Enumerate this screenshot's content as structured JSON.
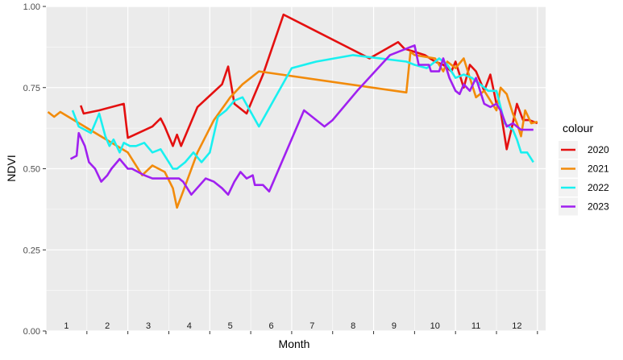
{
  "chart_data": {
    "type": "line",
    "title": "",
    "xlabel": "Month",
    "ylabel": "NDVI",
    "ylim": [
      0,
      1
    ],
    "xlim": [
      0,
      12.2
    ],
    "y_ticks": [
      "0.00",
      "0.25",
      "0.50",
      "0.75",
      "1.00"
    ],
    "y_tick_values": [
      0,
      0.25,
      0.5,
      0.75,
      1.0
    ],
    "x_ticks": [
      "1",
      "2",
      "3",
      "4",
      "5",
      "6",
      "7",
      "8",
      "9",
      "10",
      "11",
      "12"
    ],
    "x_tick_values": [
      0.5,
      1.5,
      2.5,
      3.5,
      4.5,
      5.5,
      6.5,
      7.5,
      8.5,
      9.5,
      10.5,
      11.5
    ],
    "grid": true,
    "legend_title": "colour",
    "legend_position": "right",
    "series": [
      {
        "name": "2020",
        "color": "#e41010",
        "x": [
          0.85,
          0.92,
          1.3,
          1.9,
          2.0,
          2.6,
          2.8,
          2.9,
          3.1,
          3.2,
          3.3,
          3.7,
          4.3,
          4.45,
          4.6,
          4.9,
          5.3,
          5.8,
          7.9,
          8.6,
          8.75,
          9.25,
          9.5,
          9.7,
          9.9,
          10.0,
          10.2,
          10.35,
          10.5,
          10.7,
          10.85,
          11.0,
          11.1,
          11.25,
          11.4,
          11.5,
          11.65,
          11.8,
          12.0
        ],
        "y": [
          0.695,
          0.67,
          0.68,
          0.7,
          0.595,
          0.63,
          0.655,
          0.63,
          0.57,
          0.605,
          0.57,
          0.69,
          0.76,
          0.815,
          0.7,
          0.67,
          0.79,
          0.975,
          0.84,
          0.89,
          0.87,
          0.85,
          0.83,
          0.82,
          0.8,
          0.83,
          0.75,
          0.82,
          0.8,
          0.74,
          0.79,
          0.7,
          0.68,
          0.56,
          0.64,
          0.7,
          0.65,
          0.65,
          0.64
        ]
      },
      {
        "name": "2021",
        "color": "#f28b0b",
        "x": [
          0.05,
          0.2,
          0.35,
          2.0,
          2.35,
          2.6,
          2.9,
          3.1,
          3.2,
          3.35,
          3.7,
          4.1,
          4.5,
          4.8,
          5.2,
          8.8,
          8.9,
          9.0,
          9.5,
          9.7,
          9.8,
          10.0,
          10.2,
          10.35,
          10.5,
          10.7,
          10.8,
          11.0,
          11.1,
          11.25,
          11.4,
          11.5,
          11.6,
          11.7,
          11.85,
          12.0
        ],
        "y": [
          0.675,
          0.66,
          0.675,
          0.55,
          0.48,
          0.51,
          0.49,
          0.44,
          0.38,
          0.43,
          0.55,
          0.65,
          0.72,
          0.76,
          0.8,
          0.735,
          0.86,
          0.85,
          0.84,
          0.8,
          0.83,
          0.81,
          0.84,
          0.78,
          0.72,
          0.74,
          0.72,
          0.68,
          0.75,
          0.73,
          0.67,
          0.64,
          0.6,
          0.68,
          0.64,
          0.645
        ]
      },
      {
        "name": "2022",
        "color": "#19f0f0",
        "x": [
          0.65,
          0.8,
          1.1,
          1.3,
          1.45,
          1.55,
          1.65,
          1.8,
          1.9,
          2.05,
          2.2,
          2.4,
          2.6,
          2.8,
          3.0,
          3.1,
          3.2,
          3.4,
          3.6,
          3.8,
          4.0,
          4.2,
          4.4,
          4.6,
          4.8,
          5.2,
          6.0,
          6.6,
          7.5,
          8.8,
          9.0,
          9.3,
          9.6,
          9.8,
          10.0,
          10.2,
          10.4,
          10.6,
          10.8,
          11.0,
          11.2,
          11.4,
          11.5,
          11.6,
          11.75,
          11.9
        ],
        "y": [
          0.68,
          0.63,
          0.61,
          0.67,
          0.6,
          0.57,
          0.59,
          0.55,
          0.58,
          0.57,
          0.57,
          0.58,
          0.55,
          0.56,
          0.52,
          0.5,
          0.5,
          0.52,
          0.55,
          0.52,
          0.55,
          0.66,
          0.68,
          0.71,
          0.72,
          0.63,
          0.81,
          0.83,
          0.85,
          0.83,
          0.82,
          0.81,
          0.84,
          0.82,
          0.78,
          0.79,
          0.78,
          0.76,
          0.74,
          0.74,
          0.64,
          0.62,
          0.59,
          0.55,
          0.55,
          0.52
        ]
      },
      {
        "name": "2023",
        "color": "#a020f0",
        "x": [
          0.6,
          0.75,
          0.8,
          0.95,
          1.05,
          1.2,
          1.35,
          1.5,
          1.6,
          1.8,
          2.0,
          2.1,
          2.25,
          2.4,
          2.6,
          2.8,
          3.0,
          3.1,
          3.25,
          3.35,
          3.55,
          3.9,
          4.1,
          4.3,
          4.45,
          4.6,
          4.75,
          4.9,
          5.05,
          5.1,
          5.3,
          5.45,
          6.3,
          6.8,
          7.0,
          7.6,
          8.4,
          8.6,
          9.0,
          9.1,
          9.35,
          9.4,
          9.6,
          9.7,
          9.85,
          10.0,
          10.1,
          10.2,
          10.35,
          10.5,
          10.7,
          10.85,
          11.0,
          11.1,
          11.25,
          11.4,
          11.6,
          11.9
        ],
        "y": [
          0.53,
          0.54,
          0.61,
          0.57,
          0.52,
          0.5,
          0.46,
          0.48,
          0.5,
          0.53,
          0.5,
          0.5,
          0.49,
          0.48,
          0.47,
          0.47,
          0.47,
          0.47,
          0.47,
          0.46,
          0.42,
          0.47,
          0.46,
          0.44,
          0.42,
          0.46,
          0.49,
          0.47,
          0.48,
          0.45,
          0.45,
          0.43,
          0.68,
          0.63,
          0.65,
          0.74,
          0.85,
          0.86,
          0.88,
          0.82,
          0.82,
          0.8,
          0.8,
          0.84,
          0.78,
          0.74,
          0.73,
          0.76,
          0.74,
          0.78,
          0.7,
          0.69,
          0.7,
          0.68,
          0.63,
          0.64,
          0.62,
          0.62
        ]
      }
    ]
  }
}
